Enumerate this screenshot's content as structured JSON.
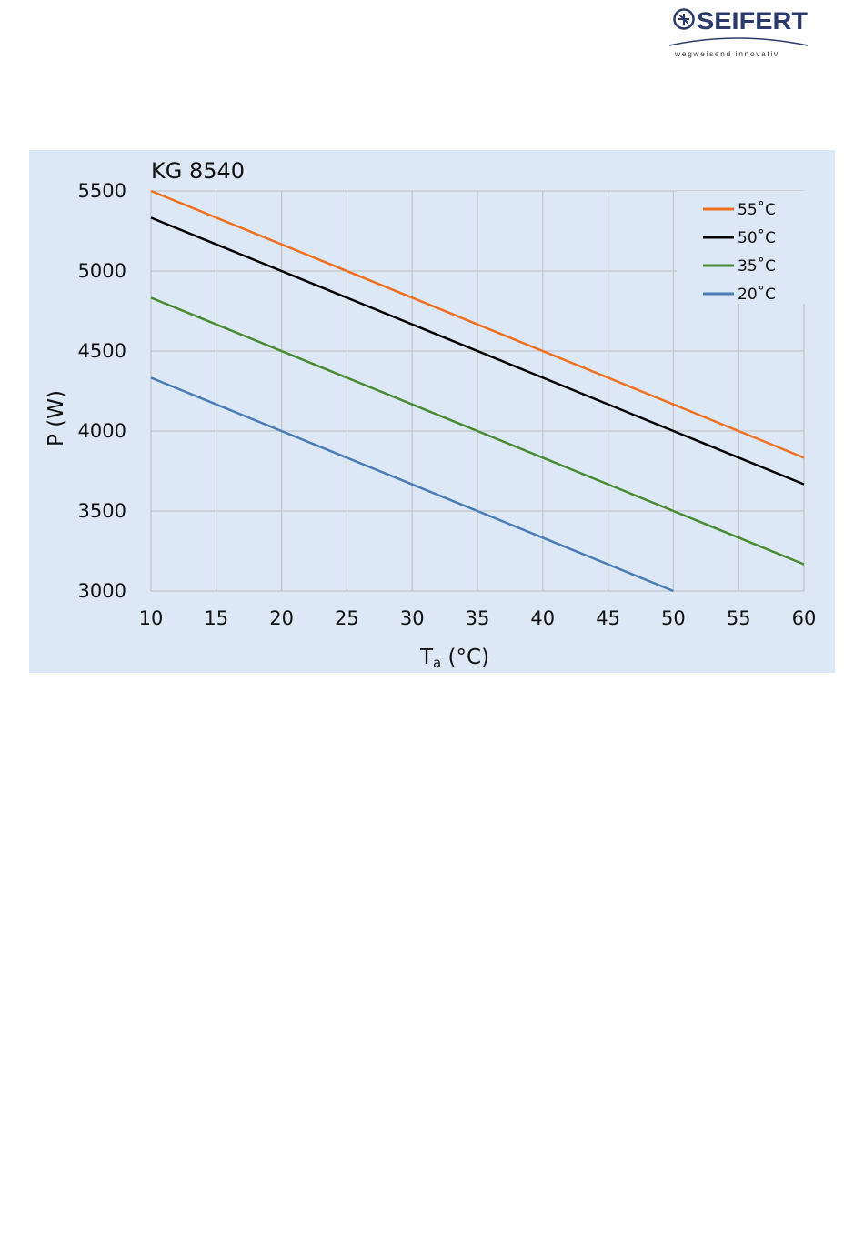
{
  "brand": {
    "name": "SEIFERT",
    "tagline": "wegweisend innovativ",
    "color": "#2b3a6b"
  },
  "chart_data": {
    "type": "line",
    "title": "KG 8540",
    "xlabel": "T",
    "xlabel_sub": "a",
    "xlabel_unit": " (°C)",
    "ylabel": "P (W)",
    "xlim": [
      10,
      60
    ],
    "ylim": [
      3000,
      5500
    ],
    "xticks": [
      10,
      15,
      20,
      25,
      30,
      35,
      40,
      45,
      50,
      55,
      60
    ],
    "yticks": [
      3000,
      3500,
      4000,
      4500,
      5000,
      5500
    ],
    "grid": true,
    "legend_position": "top-right",
    "series": [
      {
        "name": "55˚C",
        "color": "#f07020",
        "x": [
          10,
          60
        ],
        "y": [
          5500,
          3833
        ]
      },
      {
        "name": "50˚C",
        "color": "#000000",
        "x": [
          10,
          60
        ],
        "y": [
          5333,
          3667
        ]
      },
      {
        "name": "35˚C",
        "color": "#4a8a32",
        "x": [
          10,
          60
        ],
        "y": [
          4833,
          3167
        ]
      },
      {
        "name": "20˚C",
        "color": "#4a7cb8",
        "x": [
          10,
          50
        ],
        "y": [
          4333,
          3000
        ]
      }
    ]
  }
}
